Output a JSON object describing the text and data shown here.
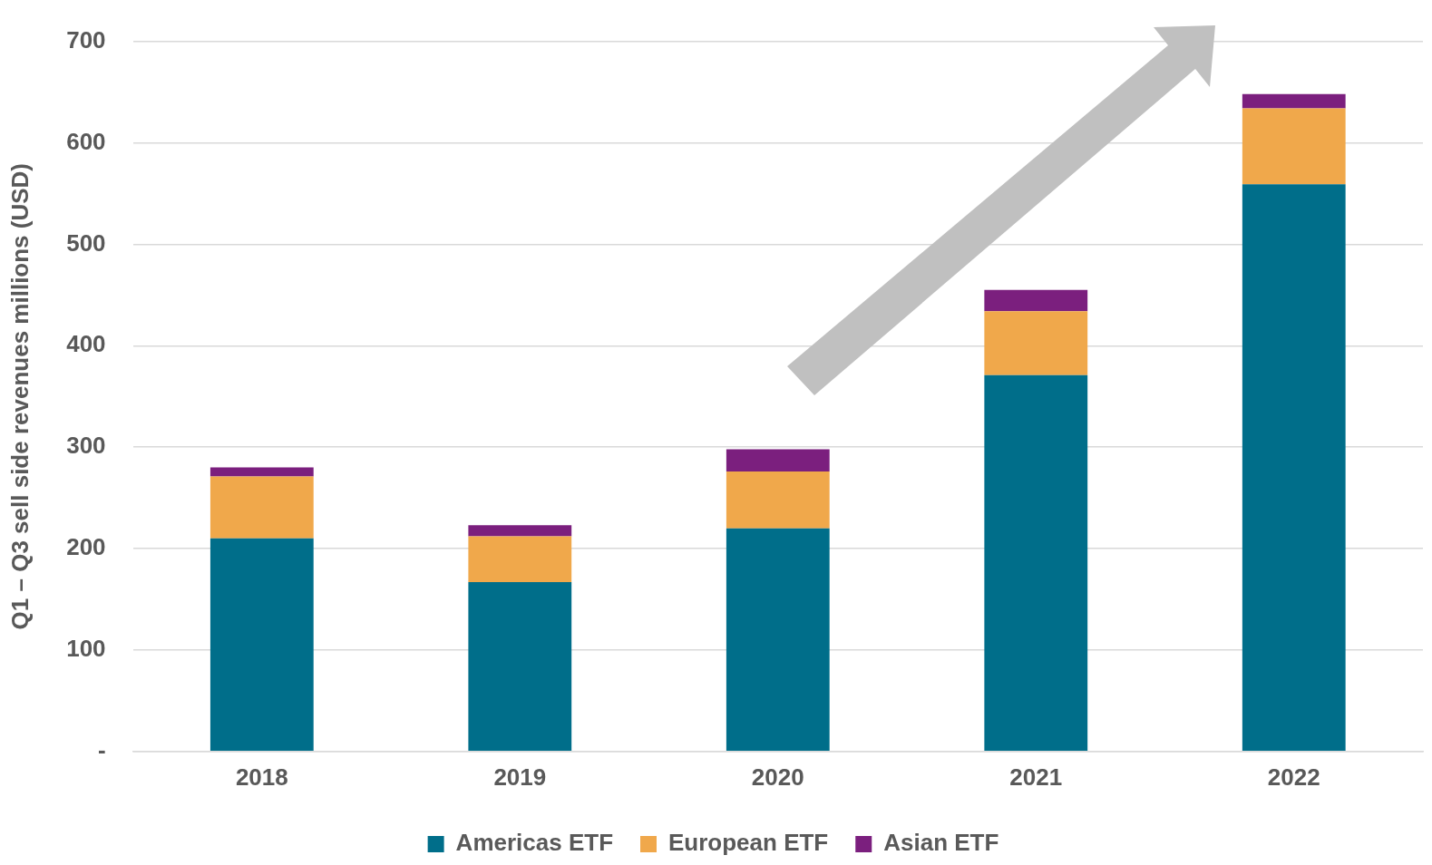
{
  "chart_data": {
    "type": "bar",
    "stacked": true,
    "ylabel": "Q1 – Q3 sell side revenues millions (USD)",
    "categories": [
      "2018",
      "2019",
      "2020",
      "2021",
      "2022"
    ],
    "series": [
      {
        "name": "Americas ETF",
        "color": "#006e8a",
        "values": [
          210,
          167,
          220,
          371,
          559
        ]
      },
      {
        "name": "European ETF",
        "color": "#f0a84b",
        "values": [
          61,
          45,
          56,
          63,
          75
        ]
      },
      {
        "name": "Asian ETF",
        "color": "#7b1f7e",
        "values": [
          9,
          11,
          22,
          21,
          14
        ]
      }
    ],
    "ylim": [
      0,
      700
    ],
    "yticks": [
      {
        "value": 0,
        "label": "-"
      },
      100,
      200,
      300,
      400,
      500,
      600,
      700
    ],
    "grid": "y",
    "legend": "bottom"
  }
}
